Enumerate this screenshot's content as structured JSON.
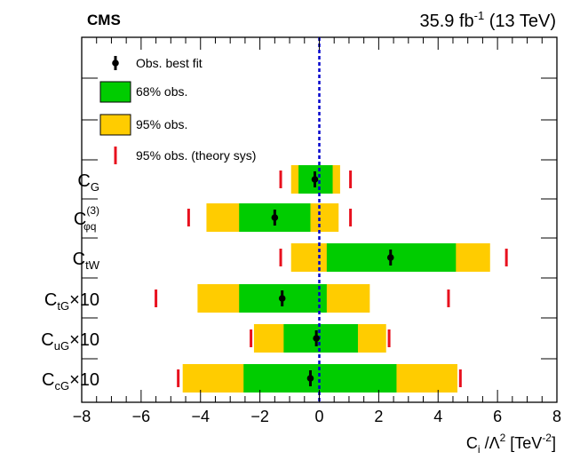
{
  "header": {
    "experiment": "CMS",
    "lumi_value": "35.9 fb",
    "lumi_exp": "-1",
    "energy": " (13 TeV)"
  },
  "legend": {
    "best_fit": "Obs. best fit",
    "band68": "68% obs.",
    "band95": "95% obs.",
    "theory": "95% obs. (theory sys)"
  },
  "colors": {
    "band68": "#00cc00",
    "band95": "#ffcc00",
    "theory": "#e8101e",
    "zero_line": "#0000cc",
    "marker": "#000000"
  },
  "chart_data": {
    "type": "interval",
    "xlabel": "C_i / Λ^2 [TeV^-2]",
    "xlim": [
      -8,
      8
    ],
    "xticks": [
      -8,
      -6,
      -4,
      -2,
      0,
      2,
      4,
      6,
      8
    ],
    "tick_labels": [
      "−8",
      "−6",
      "−4",
      "−2",
      "0",
      "2",
      "4",
      "6",
      "8"
    ],
    "reference_line": 0,
    "rows": [
      {
        "name": "C_G",
        "label_main": "C",
        "label_sub": "G",
        "label_sup": "",
        "label_suffix": "",
        "best": -0.15,
        "ci68": [
          -0.7,
          0.45
        ],
        "ci95": [
          -0.95,
          0.7
        ],
        "theory95": [
          -1.3,
          1.05
        ]
      },
      {
        "name": "C_phiq(3)",
        "label_main": "C",
        "label_sub": "φq",
        "label_sup": "(3)",
        "label_suffix": "",
        "best": -1.5,
        "ci68": [
          -2.7,
          -0.3
        ],
        "ci95": [
          -3.8,
          0.65
        ],
        "theory95": [
          -4.4,
          1.05
        ]
      },
      {
        "name": "C_tW",
        "label_main": "C",
        "label_sub": "tW",
        "label_sup": "",
        "label_suffix": "",
        "best": 2.4,
        "ci68": [
          0.25,
          4.6
        ],
        "ci95": [
          -0.95,
          5.75
        ],
        "theory95": [
          -1.3,
          6.3
        ]
      },
      {
        "name": "C_tG x10",
        "label_main": "C",
        "label_sub": "tG",
        "label_sup": "",
        "label_suffix": "×10",
        "best": -1.25,
        "ci68": [
          -2.7,
          0.25
        ],
        "ci95": [
          -4.1,
          1.7
        ],
        "theory95": [
          -5.5,
          4.35
        ]
      },
      {
        "name": "C_uG x10",
        "label_main": "C",
        "label_sub": "uG",
        "label_sup": "",
        "label_suffix": "×10",
        "best": -0.1,
        "ci68": [
          -1.2,
          1.3
        ],
        "ci95": [
          -2.2,
          2.25
        ],
        "theory95": [
          -2.3,
          2.35
        ]
      },
      {
        "name": "C_cG x10",
        "label_main": "C",
        "label_sub": "cG",
        "label_sup": "",
        "label_suffix": "×10",
        "best": -0.3,
        "ci68": [
          -2.55,
          2.6
        ],
        "ci95": [
          -4.6,
          4.65
        ],
        "theory95": [
          -4.75,
          4.75
        ]
      }
    ]
  }
}
